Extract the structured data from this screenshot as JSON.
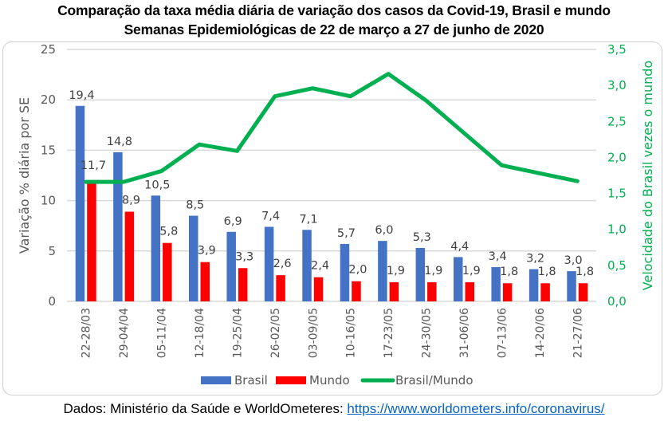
{
  "title_line1": "Comparação da taxa média diária de variação dos casos da Covid-19, Brasil e mundo",
  "title_line2": "Semanas Epidemiológicas de 22 de março a 27 de junho de 2020",
  "source_prefix": "Dados: Ministério da Saúde e WorldOmeteres: ",
  "source_link": "https://www.worldometers.info/coronavirus/",
  "colors": {
    "brasil": "#4472c4",
    "mundo": "#ff0000",
    "ratio": "#00b050",
    "grid": "#d9d9d9"
  },
  "chart_data": {
    "type": "bar+line",
    "title": "Comparação da taxa média diária de variação dos casos da Covid-19, Brasil e mundo",
    "subtitle": "Semanas Epidemiológicas de 22 de março a 27 de junho de 2020",
    "categories": [
      "22-28/03",
      "29-04/04",
      "05-11/04",
      "12-18/04",
      "19-25/04",
      "26-02/05",
      "03-09/05",
      "10-16/05",
      "17-23/05",
      "24-30/05",
      "31-06/06",
      "07-13/06",
      "14-20/06",
      "21-27/06"
    ],
    "series": [
      {
        "name": "Brasil",
        "type": "bar",
        "axis": "left",
        "values": [
          19.4,
          14.8,
          10.5,
          8.5,
          6.9,
          7.4,
          7.1,
          5.7,
          6.0,
          5.3,
          4.4,
          3.4,
          3.2,
          3.0
        ],
        "labels": [
          "19,4",
          "14,8",
          "10,5",
          "8,5",
          "6,9",
          "7,4",
          "7,1",
          "5,7",
          "6,0",
          "5,3",
          "4,4",
          "3,4",
          "3,2",
          "3,0"
        ]
      },
      {
        "name": "Mundo",
        "type": "bar",
        "axis": "left",
        "values": [
          11.7,
          8.9,
          5.8,
          3.9,
          3.3,
          2.6,
          2.4,
          2.0,
          1.9,
          1.9,
          1.9,
          1.8,
          1.8,
          1.8
        ],
        "labels": [
          "11,7",
          "8,9",
          "5,8",
          "3,9",
          "3,3",
          "2,6",
          "2,4",
          "2,0",
          "1,9",
          "1,9",
          "1,9",
          "1,8",
          "1,8",
          "1,8"
        ]
      },
      {
        "name": "Brasil/Mundo",
        "type": "line",
        "axis": "right",
        "values": [
          1.66,
          1.66,
          1.81,
          2.18,
          2.09,
          2.85,
          2.96,
          2.85,
          3.16,
          2.79,
          2.34,
          1.89,
          1.78,
          1.67
        ]
      }
    ],
    "ylabel": "Variação % diária por SE",
    "ylim": [
      0,
      25
    ],
    "yticks": [
      "0",
      "5",
      "10",
      "15",
      "20",
      "25"
    ],
    "y2label": "Velocidade do Brasil vezes o mundo",
    "y2lim": [
      0,
      3.5
    ],
    "y2ticks": [
      "0,0",
      "0,5",
      "1,0",
      "1,5",
      "2,0",
      "2,5",
      "3,0",
      "3,5"
    ],
    "grid": true,
    "legend": {
      "position": "bottom",
      "entries": [
        "Brasil",
        "Mundo",
        "Brasil/Mundo"
      ]
    }
  }
}
